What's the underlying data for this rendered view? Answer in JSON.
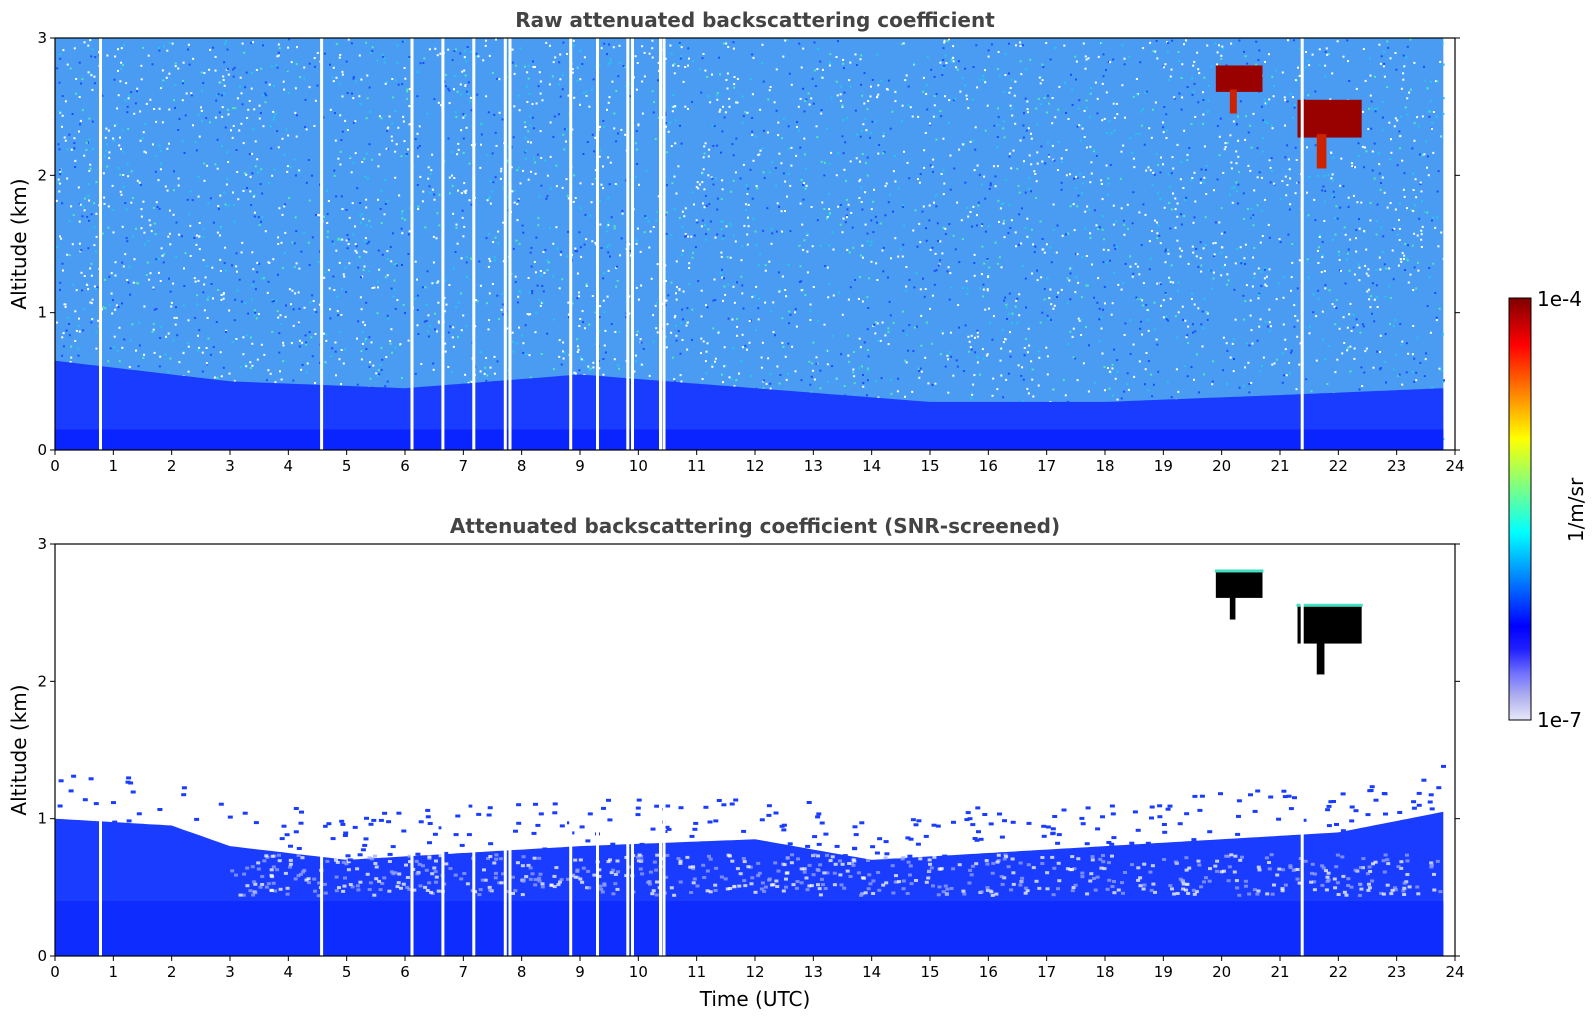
{
  "chart_data": [
    {
      "type": "heatmap",
      "title": "Raw attenuated backscattering coefficient",
      "xlabel": "",
      "ylabel": "Altitude (km)",
      "xlim": [
        0,
        24
      ],
      "ylim": [
        0,
        3
      ],
      "x_ticks": [
        "0",
        "1",
        "2",
        "3",
        "4",
        "5",
        "6",
        "7",
        "8",
        "9",
        "10",
        "11",
        "12",
        "13",
        "14",
        "15",
        "16",
        "17",
        "18",
        "19",
        "20",
        "21",
        "22",
        "23",
        "24"
      ],
      "y_ticks": [
        "0",
        "1",
        "2",
        "3"
      ],
      "data_end_time": 23.8,
      "boundary_layer_top_km": [
        {
          "time": 0,
          "km": 0.65
        },
        {
          "time": 3,
          "km": 0.5
        },
        {
          "time": 6,
          "km": 0.45
        },
        {
          "time": 9,
          "km": 0.55
        },
        {
          "time": 12,
          "km": 0.45
        },
        {
          "time": 15,
          "km": 0.35
        },
        {
          "time": 18,
          "km": 0.35
        },
        {
          "time": 21,
          "km": 0.4
        },
        {
          "time": 23.8,
          "km": 0.45
        }
      ],
      "clouds": [
        {
          "time_start": 19.9,
          "time_end": 20.7,
          "base_km": 2.45,
          "top_km": 2.8
        },
        {
          "time_start": 21.3,
          "time_end": 22.4,
          "base_km": 2.05,
          "top_km": 2.55
        }
      ],
      "missing_times": [
        0.78,
        4.57,
        6.12,
        6.65,
        7.18,
        7.72,
        7.8,
        8.84,
        9.3,
        9.82,
        9.9,
        10.38,
        10.44,
        21.38
      ],
      "colormap": "jet",
      "background_noise_color": "#3399ff"
    },
    {
      "type": "heatmap",
      "title": "Attenuated backscattering coefficient (SNR-screened)",
      "xlabel": "Time (UTC)",
      "ylabel": "Altitude (km)",
      "xlim": [
        0,
        24
      ],
      "ylim": [
        0,
        3
      ],
      "x_ticks": [
        "0",
        "1",
        "2",
        "3",
        "4",
        "5",
        "6",
        "7",
        "8",
        "9",
        "10",
        "11",
        "12",
        "13",
        "14",
        "15",
        "16",
        "17",
        "18",
        "19",
        "20",
        "21",
        "22",
        "23",
        "24"
      ],
      "y_ticks": [
        "0",
        "1",
        "2",
        "3"
      ],
      "data_end_time": 23.8,
      "signal_top_km": [
        {
          "time": 0,
          "km": 1.0
        },
        {
          "time": 2,
          "km": 0.95
        },
        {
          "time": 3,
          "km": 0.8
        },
        {
          "time": 5,
          "km": 0.7
        },
        {
          "time": 7,
          "km": 0.75
        },
        {
          "time": 9,
          "km": 0.8
        },
        {
          "time": 12,
          "km": 0.85
        },
        {
          "time": 14,
          "km": 0.7
        },
        {
          "time": 16,
          "km": 0.75
        },
        {
          "time": 18,
          "km": 0.8
        },
        {
          "time": 20,
          "km": 0.85
        },
        {
          "time": 22,
          "km": 0.9
        },
        {
          "time": 23.8,
          "km": 1.05
        }
      ],
      "clouds": [
        {
          "time_start": 19.9,
          "time_end": 20.7,
          "base_km": 2.45,
          "top_km": 2.8,
          "color": "#000000"
        },
        {
          "time_start": 21.3,
          "time_end": 22.4,
          "base_km": 2.05,
          "top_km": 2.55,
          "color": "#000000"
        }
      ],
      "missing_times": [
        0.78,
        4.57,
        6.12,
        6.65,
        7.18,
        7.72,
        7.8,
        8.84,
        9.3,
        9.82,
        9.9,
        10.38,
        10.44,
        21.38
      ],
      "colormap": "jet"
    }
  ],
  "colorbar": {
    "max_label": "1e-4",
    "min_label": "1e-7",
    "unit_label": "1/m/sr",
    "scale": "log",
    "range": [
      1e-07,
      0.0001
    ],
    "colors": [
      "#e8e8f8",
      "#b0b0f0",
      "#7070ff",
      "#2020ff",
      "#0000ff",
      "#0040ff",
      "#0080ff",
      "#00c0ff",
      "#00ffff",
      "#40ffc0",
      "#80ff80",
      "#c0ff40",
      "#ffff00",
      "#ffc000",
      "#ff8000",
      "#ff4000",
      "#ff0000",
      "#c00000",
      "#800000"
    ]
  }
}
